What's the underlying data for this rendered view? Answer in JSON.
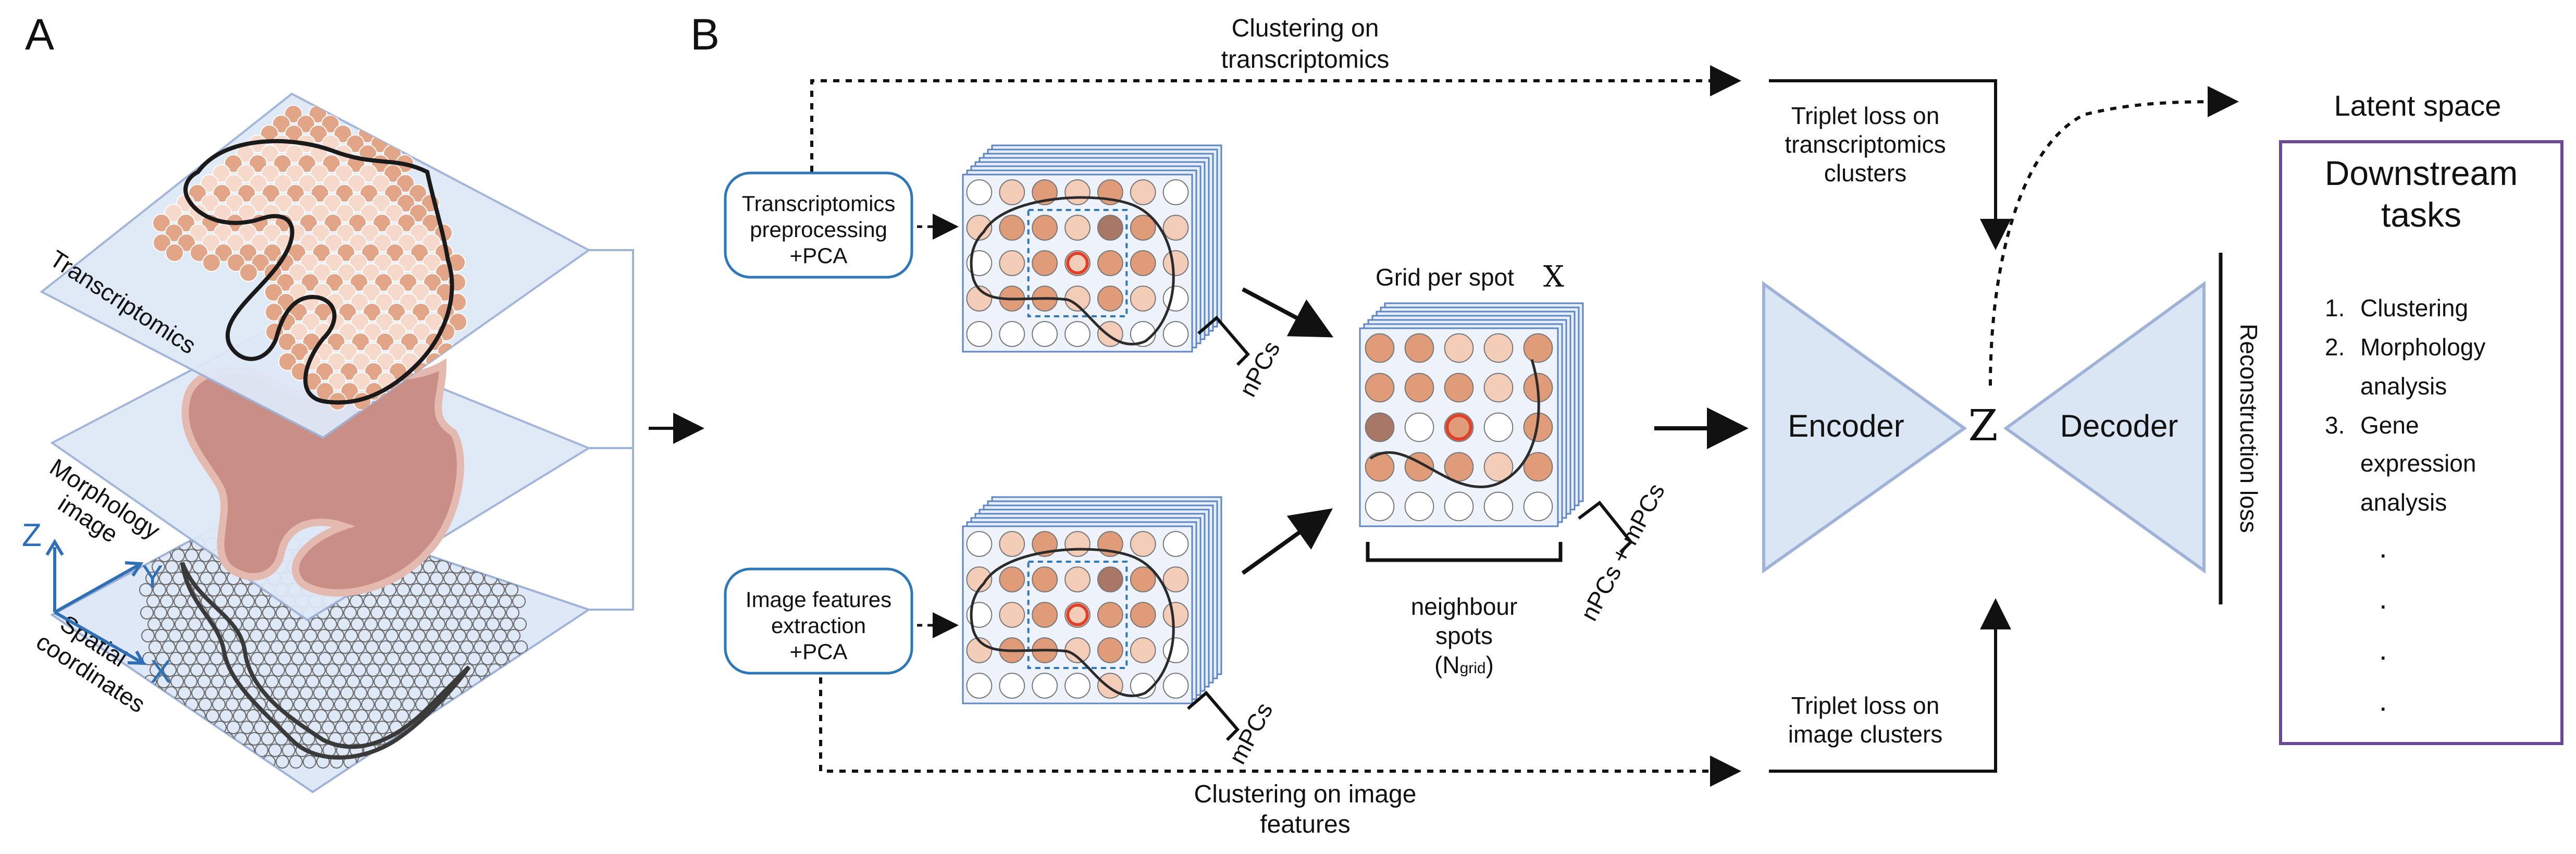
{
  "panel_labels": {
    "a": "A",
    "b": "B"
  },
  "panel_a": {
    "layers": {
      "transcriptomics": "Transcriptomics",
      "morphology_line1": "Morphology",
      "morphology_line2": "image",
      "spatial_line1": "Spatial",
      "spatial_line2": "coordinates"
    },
    "axes": {
      "z": "Z",
      "y": "Y",
      "x": "X"
    }
  },
  "panel_b": {
    "clustering_transcriptomics_line1": "Clustering on",
    "clustering_transcriptomics_line2": "transcriptomics",
    "clustering_image_line1": "Clustering on image",
    "clustering_image_line2": "features",
    "transcriptomics_box": {
      "line1": "Transcriptomics",
      "line2": "preprocessing",
      "line3": "+PCA"
    },
    "image_box": {
      "line1": "Image features",
      "line2": "extraction",
      "line3": "+PCA"
    },
    "npcs_label": "nPCs",
    "mpcs_label": "mPCs",
    "grid_title": "Grid per spot",
    "grid_symbol": "X",
    "nm_label": "nPCs + mPCs",
    "neighbour_line1": "neighbour",
    "neighbour_line2": "spots",
    "ngrid_main": "(N",
    "ngrid_sub": "grid",
    "ngrid_close": ")",
    "encoder": "Encoder",
    "decoder": "Decoder",
    "latent_symbol": "Z",
    "reconstruction_loss": "Reconstruction loss",
    "triplet_trans_line1": "Triplet loss on",
    "triplet_trans_line2": "transcriptomics",
    "triplet_trans_line3": "clusters",
    "triplet_img_line1": "Triplet loss on",
    "triplet_img_line2": "image clusters",
    "latent_space": "Latent space",
    "downstream_line1": "Downstream",
    "downstream_line2": "tasks",
    "tasks": [
      {
        "num": "1.",
        "line1": "Clustering",
        "line2": ""
      },
      {
        "num": "2.",
        "line1": "Morphology",
        "line2": "analysis"
      },
      {
        "num": "3.",
        "line1": "Gene",
        "line2": "expression",
        "line3": "analysis"
      }
    ],
    "dots": [
      ".",
      ".",
      ".",
      "."
    ]
  },
  "colors": {
    "plane_fill": "#dfe8f6",
    "plane_stroke": "#9fb3d8",
    "spot_orange": "#e3a588",
    "spot_light": "#f6d9cb",
    "tissue": "#c98e86",
    "box_stroke": "#2e77b8",
    "axis_blue": "#2e6fb7",
    "purple": "#6a4a97",
    "triangle_fill": "#dbe6f5",
    "highlight_red": "#e0402a"
  }
}
